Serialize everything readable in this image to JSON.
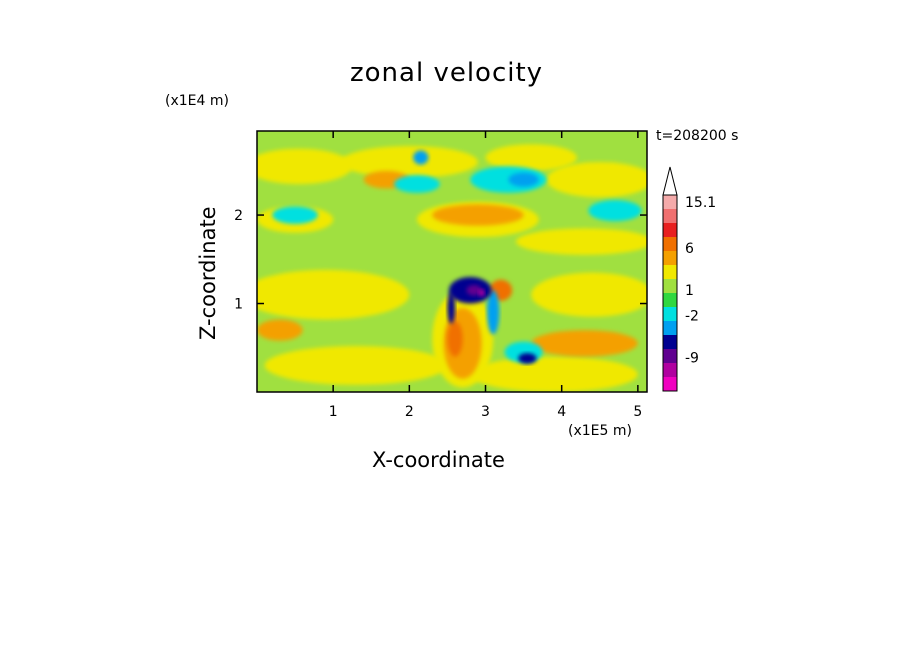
{
  "chart_data": {
    "type": "heatmap",
    "title": "zonal velocity",
    "xlabel": "X-coordinate",
    "ylabel": "Z-coordinate",
    "x_multiplier": "(x1E5 m)",
    "y_multiplier": "(x1E4 m)",
    "time_label": "t=208200 s",
    "xlim": [
      0,
      5.12
    ],
    "ylim": [
      0,
      2.95
    ],
    "x_ticks": [
      "1",
      "2",
      "3",
      "4",
      "5"
    ],
    "y_ticks": [
      "1",
      "2"
    ],
    "colorbar": {
      "labels": [
        "15.1",
        "6",
        "1",
        "-2",
        "-9"
      ],
      "colors": [
        "#f4aaaa",
        "#f07070",
        "#e82020",
        "#f07000",
        "#f4a000",
        "#f0e800",
        "#a0e040",
        "#30d840",
        "#00e0e0",
        "#00a0f0",
        "#000090",
        "#600090",
        "#b000a0",
        "#f000c0"
      ]
    },
    "background_level": "#a0e040",
    "regions": [
      {
        "level": "#f0e800",
        "x": 0.55,
        "z": 2.55,
        "rx": 0.7,
        "rz": 0.2
      },
      {
        "level": "#f0e800",
        "x": 2.0,
        "z": 2.6,
        "rx": 0.9,
        "rz": 0.18
      },
      {
        "level": "#f0e800",
        "x": 3.6,
        "z": 2.65,
        "rx": 0.6,
        "rz": 0.15
      },
      {
        "level": "#f0e800",
        "x": 4.5,
        "z": 2.4,
        "rx": 0.7,
        "rz": 0.2
      },
      {
        "level": "#f0e800",
        "x": 0.5,
        "z": 1.95,
        "rx": 0.5,
        "rz": 0.15
      },
      {
        "level": "#f0e800",
        "x": 2.9,
        "z": 1.95,
        "rx": 0.8,
        "rz": 0.2
      },
      {
        "level": "#f0e800",
        "x": 4.3,
        "z": 1.7,
        "rx": 0.9,
        "rz": 0.15
      },
      {
        "level": "#f0e800",
        "x": 0.9,
        "z": 1.1,
        "rx": 1.1,
        "rz": 0.28
      },
      {
        "level": "#f0e800",
        "x": 4.4,
        "z": 1.1,
        "rx": 0.8,
        "rz": 0.25
      },
      {
        "level": "#f0e800",
        "x": 1.3,
        "z": 0.3,
        "rx": 1.2,
        "rz": 0.22
      },
      {
        "level": "#f0e800",
        "x": 3.9,
        "z": 0.2,
        "rx": 1.1,
        "rz": 0.2
      },
      {
        "level": "#f0e800",
        "x": 2.7,
        "z": 0.6,
        "rx": 0.4,
        "rz": 0.55
      },
      {
        "level": "#f4a000",
        "x": 2.9,
        "z": 2.0,
        "rx": 0.6,
        "rz": 0.12
      },
      {
        "level": "#f4a000",
        "x": 1.7,
        "z": 2.4,
        "rx": 0.3,
        "rz": 0.1
      },
      {
        "level": "#f4a000",
        "x": 4.3,
        "z": 0.55,
        "rx": 0.7,
        "rz": 0.15
      },
      {
        "level": "#f4a000",
        "x": 2.7,
        "z": 0.55,
        "rx": 0.25,
        "rz": 0.4
      },
      {
        "level": "#f4a000",
        "x": 0.3,
        "z": 0.7,
        "rx": 0.3,
        "rz": 0.12
      },
      {
        "level": "#f07000",
        "x": 3.2,
        "z": 1.15,
        "rx": 0.15,
        "rz": 0.12
      },
      {
        "level": "#f07000",
        "x": 2.6,
        "z": 0.6,
        "rx": 0.1,
        "rz": 0.2
      },
      {
        "level": "#00e0e0",
        "x": 0.5,
        "z": 2.0,
        "rx": 0.3,
        "rz": 0.1
      },
      {
        "level": "#00e0e0",
        "x": 3.3,
        "z": 2.4,
        "rx": 0.5,
        "rz": 0.15
      },
      {
        "level": "#00e0e0",
        "x": 4.7,
        "z": 2.05,
        "rx": 0.35,
        "rz": 0.12
      },
      {
        "level": "#00e0e0",
        "x": 2.1,
        "z": 2.35,
        "rx": 0.3,
        "rz": 0.1
      },
      {
        "level": "#00e0e0",
        "x": 3.5,
        "z": 0.45,
        "rx": 0.25,
        "rz": 0.12
      },
      {
        "level": "#00a0f0",
        "x": 2.15,
        "z": 2.65,
        "rx": 0.1,
        "rz": 0.08
      },
      {
        "level": "#00a0f0",
        "x": 3.5,
        "z": 2.4,
        "rx": 0.2,
        "rz": 0.08
      },
      {
        "level": "#00a0f0",
        "x": 3.1,
        "z": 0.9,
        "rx": 0.08,
        "rz": 0.25
      },
      {
        "level": "#000090",
        "x": 2.8,
        "z": 1.15,
        "rx": 0.28,
        "rz": 0.15
      },
      {
        "level": "#000090",
        "x": 3.55,
        "z": 0.38,
        "rx": 0.12,
        "rz": 0.06
      },
      {
        "level": "#000090",
        "x": 2.55,
        "z": 0.95,
        "rx": 0.05,
        "rz": 0.18
      },
      {
        "level": "#600090",
        "x": 2.85,
        "z": 1.15,
        "rx": 0.1,
        "rz": 0.06
      },
      {
        "level": "#b000a0",
        "x": 2.95,
        "z": 1.12,
        "rx": 0.04,
        "rz": 0.04
      }
    ]
  }
}
